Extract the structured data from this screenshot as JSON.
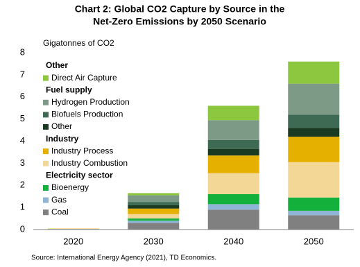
{
  "chart_data": {
    "type": "stacked_bar",
    "title_lines": [
      "Chart 2: Global CO2 Capture by Source in the",
      "Net-Zero Emissions by 2050 Scenario"
    ],
    "y_label": "Gigatonnes of CO2",
    "source": "Source: International Energy Agency (2021), TD Economics.",
    "categories": [
      "2020",
      "2030",
      "2040",
      "2050"
    ],
    "ylim": [
      0,
      8
    ],
    "yticks": [
      0,
      1,
      2,
      3,
      4,
      5,
      6,
      7,
      8
    ],
    "grid": false,
    "series": [
      {
        "name": "Coal",
        "color": "#808080",
        "values": [
          0.02,
          0.3,
          0.9,
          0.65
        ]
      },
      {
        "name": "Gas",
        "color": "#8eb4d6",
        "values": [
          0.01,
          0.1,
          0.25,
          0.2
        ]
      },
      {
        "name": "Bioenergy",
        "color": "#13b03b",
        "values": [
          0,
          0.1,
          0.45,
          0.6
        ]
      },
      {
        "name": "Industry Combustion",
        "color": "#f3d797",
        "values": [
          0.01,
          0.2,
          0.95,
          1.6
        ]
      },
      {
        "name": "Industry Process",
        "color": "#e6b000",
        "values": [
          0.01,
          0.25,
          0.8,
          1.15
        ]
      },
      {
        "name": "Other",
        "color": "#1b3a22",
        "values": [
          0,
          0.15,
          0.3,
          0.4
        ]
      },
      {
        "name": "Biofuels Production",
        "color": "#3e6a54",
        "values": [
          0,
          0.15,
          0.4,
          0.6
        ]
      },
      {
        "name": "Hydrogen Production",
        "color": "#7d9a87",
        "values": [
          0,
          0.3,
          0.9,
          1.4
        ]
      },
      {
        "name": "Direct Air Capture",
        "color": "#8dc63f",
        "values": [
          0,
          0.1,
          0.65,
          1.0
        ]
      }
    ],
    "legend_groups": [
      {
        "title": "Other",
        "series": [
          8
        ]
      },
      {
        "title": "Fuel supply",
        "series": [
          7,
          6,
          5
        ]
      },
      {
        "title": "Industry",
        "series": [
          4,
          3
        ]
      },
      {
        "title": "Electricity sector",
        "series": [
          2,
          1,
          0
        ]
      }
    ]
  }
}
